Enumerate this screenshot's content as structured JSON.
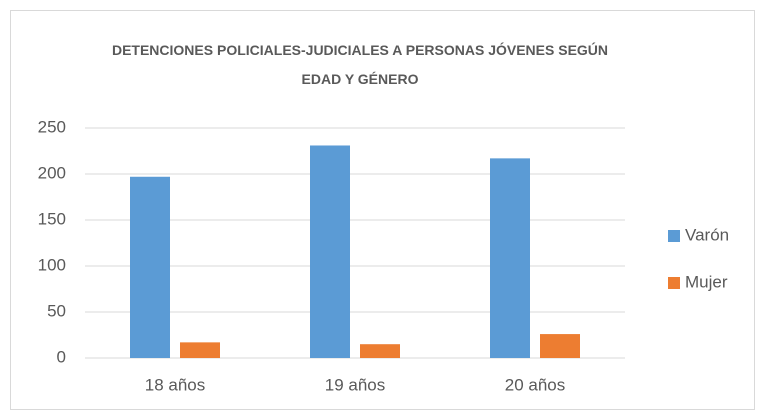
{
  "chart_data": {
    "type": "bar",
    "title": "DETENCIONES POLICIALES-JUDICIALES A PERSONAS JÓVENES SEGÚN EDAD Y GÉNERO",
    "categories": [
      "18 años",
      "19 años",
      "20 años"
    ],
    "series": [
      {
        "name": "Varón",
        "color": "#5b9bd5",
        "values": [
          197,
          231,
          217
        ]
      },
      {
        "name": "Mujer",
        "color": "#ed7d31",
        "values": [
          17,
          15,
          26
        ]
      }
    ],
    "ylim": [
      0,
      250
    ],
    "yticks": [
      0,
      50,
      100,
      150,
      200,
      250
    ],
    "grid": true,
    "legend": "right"
  }
}
